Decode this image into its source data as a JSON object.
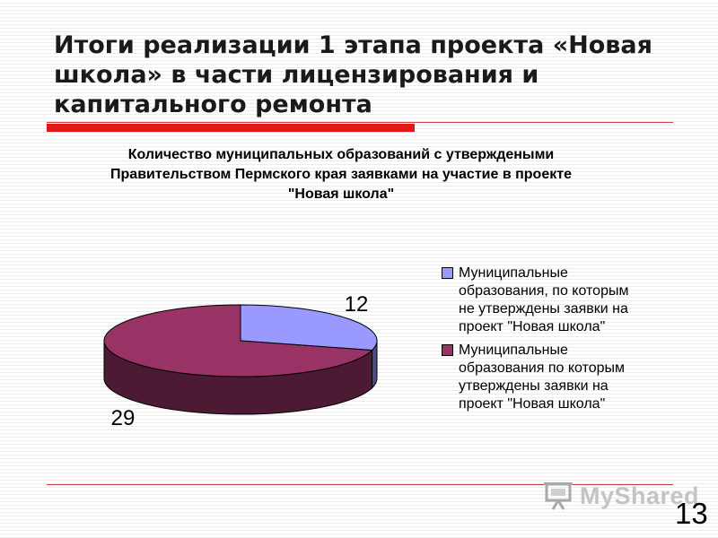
{
  "slide": {
    "title": "Итоги реализации 1 этапа проекта «Новая школа» в части лицензирования и капитального ремонта",
    "page_number": "13"
  },
  "chart_data": {
    "type": "pie",
    "title": "Количество муниципальных образований с утверждеными Правительством Пермского края заявками на участие в проекте \"Новая школа\"",
    "categories": [
      "Муниципальные образования, по которым не утверждены заявки на проект \"Новая школа\"",
      "Муниципальные образования по которым утверждены заявки на проект \"Новая школа\""
    ],
    "values": [
      12,
      29
    ],
    "data_labels": [
      "12",
      "29"
    ],
    "colors": [
      "#9999ff",
      "#993366"
    ],
    "legend_position": "right",
    "style": "3d"
  },
  "watermark": {
    "logo_text": "MyShared"
  }
}
